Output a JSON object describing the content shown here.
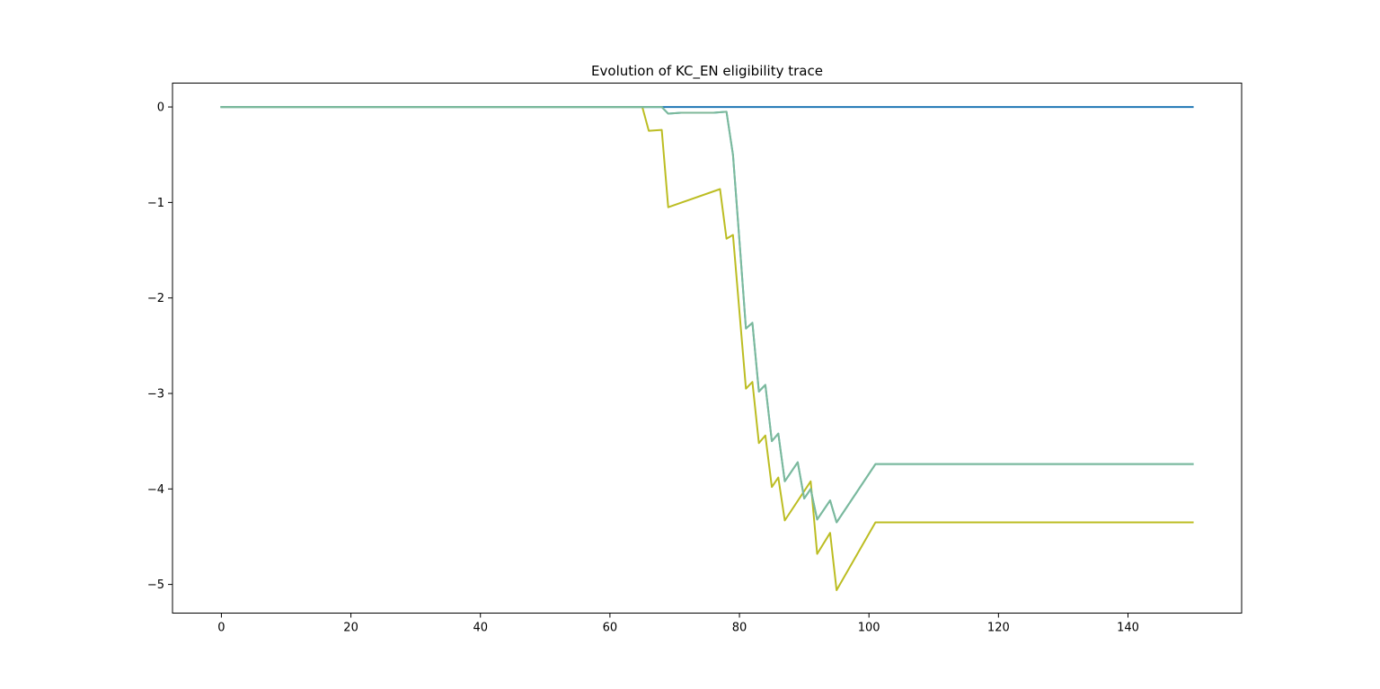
{
  "chart_data": {
    "type": "line",
    "title": "Evolution of KC_EN eligibility trace",
    "xlabel": "",
    "ylabel": "",
    "xlim": [
      -7.55,
      157.55
    ],
    "ylim": [
      -5.3,
      0.25
    ],
    "xticks": [
      0,
      20,
      40,
      60,
      80,
      100,
      120,
      140
    ],
    "yticks": [
      0,
      -1,
      -2,
      -3,
      -4,
      -5
    ],
    "xtick_labels": [
      "0",
      "20",
      "40",
      "60",
      "80",
      "100",
      "120",
      "140"
    ],
    "ytick_labels": [
      "0",
      "−1",
      "−2",
      "−3",
      "−4",
      "−5"
    ],
    "grid": false,
    "legend": "none",
    "series": [
      {
        "color": "#1f77b4",
        "points": [
          [
            0,
            0
          ],
          [
            150,
            0
          ]
        ]
      },
      {
        "color": "#bcbd22",
        "points": [
          [
            0,
            0
          ],
          [
            65,
            0
          ],
          [
            66,
            -0.25
          ],
          [
            68,
            -0.24
          ],
          [
            69,
            -1.05
          ],
          [
            77,
            -0.86
          ],
          [
            78,
            -1.38
          ],
          [
            79,
            -1.34
          ],
          [
            81,
            -2.95
          ],
          [
            82,
            -2.88
          ],
          [
            83,
            -3.52
          ],
          [
            84,
            -3.44
          ],
          [
            85,
            -3.98
          ],
          [
            86,
            -3.88
          ],
          [
            87,
            -4.33
          ],
          [
            91,
            -3.92
          ],
          [
            92,
            -4.68
          ],
          [
            94,
            -4.46
          ],
          [
            95,
            -5.06
          ],
          [
            101,
            -4.35
          ],
          [
            150,
            -4.35
          ]
        ]
      },
      {
        "color": "#17becf",
        "points": [
          [
            0,
            0
          ],
          [
            68,
            0
          ],
          [
            69,
            -0.07
          ],
          [
            71,
            -0.06
          ],
          [
            76,
            -0.06
          ],
          [
            78,
            -0.05
          ],
          [
            79,
            -0.5
          ],
          [
            80,
            -1.4
          ],
          [
            81,
            -2.32
          ],
          [
            82,
            -2.26
          ],
          [
            83,
            -2.98
          ],
          [
            84,
            -2.91
          ],
          [
            85,
            -3.5
          ],
          [
            86,
            -3.42
          ],
          [
            87,
            -3.92
          ],
          [
            89,
            -3.72
          ],
          [
            90,
            -4.1
          ],
          [
            91,
            -4.0
          ],
          [
            92,
            -4.32
          ],
          [
            94,
            -4.12
          ],
          [
            95,
            -4.35
          ],
          [
            101,
            -3.74
          ],
          [
            150,
            -3.74
          ]
        ]
      },
      {
        "color": "#7fb89a",
        "points": [
          [
            0,
            0
          ],
          [
            68,
            0
          ],
          [
            69,
            -0.07
          ],
          [
            71,
            -0.06
          ],
          [
            76,
            -0.06
          ],
          [
            78,
            -0.05
          ],
          [
            79,
            -0.5
          ],
          [
            80,
            -1.4
          ],
          [
            81,
            -2.32
          ],
          [
            82,
            -2.26
          ],
          [
            83,
            -2.98
          ],
          [
            84,
            -2.91
          ],
          [
            85,
            -3.5
          ],
          [
            86,
            -3.42
          ],
          [
            87,
            -3.92
          ],
          [
            89,
            -3.72
          ],
          [
            90,
            -4.1
          ],
          [
            91,
            -4.0
          ],
          [
            92,
            -4.32
          ],
          [
            94,
            -4.12
          ],
          [
            95,
            -4.35
          ],
          [
            101,
            -3.74
          ],
          [
            150,
            -3.74
          ]
        ]
      }
    ]
  }
}
